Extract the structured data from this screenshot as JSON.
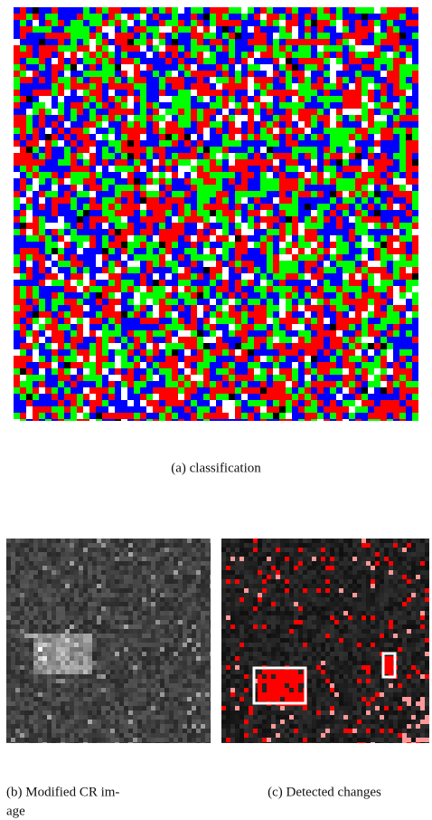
{
  "figure": {
    "subfigures": [
      {
        "caption": [
          "(a) classification"
        ]
      },
      {
        "caption": [
          "(b) Modified CR im-",
          "age"
        ]
      },
      {
        "caption": [
          "(c) Detected changes"
        ]
      }
    ]
  }
}
